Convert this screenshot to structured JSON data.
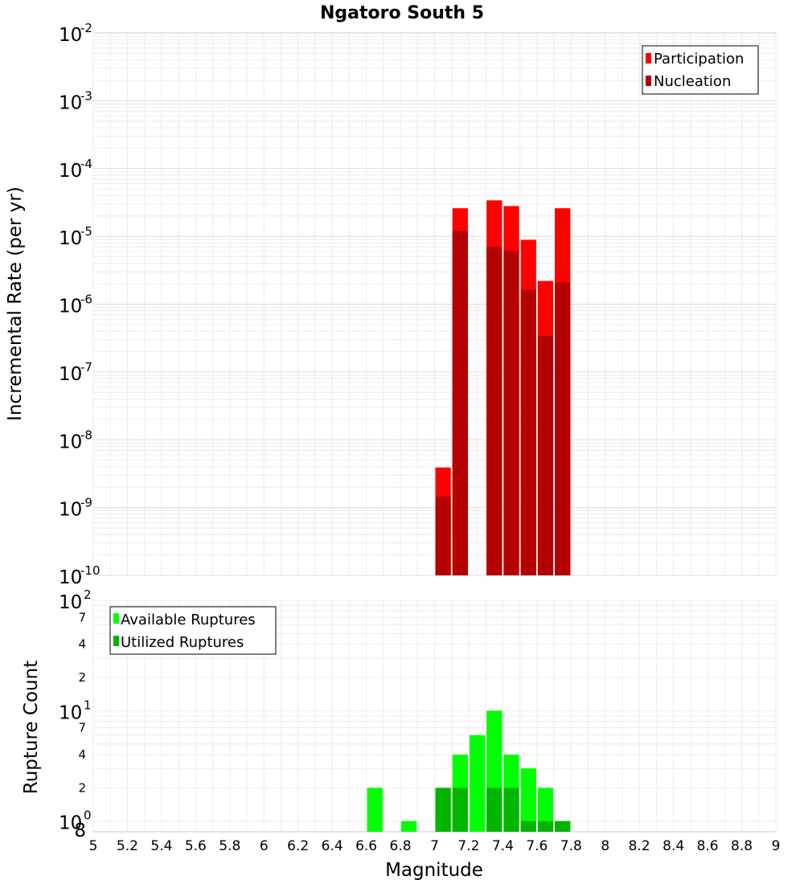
{
  "chart_data": [
    {
      "type": "bar",
      "title": "Ngatoro South 5",
      "xlabel": "Magnitude",
      "ylabel": "Incremental Rate (per yr)",
      "yscale": "log",
      "xlim": [
        5,
        9
      ],
      "ylim": [
        1e-10,
        0.01
      ],
      "x_ticks": [
        "5",
        "5.2",
        "5.4",
        "5.6",
        "5.8",
        "6",
        "6.2",
        "6.4",
        "6.6",
        "6.8",
        "7",
        "7.2",
        "7.4",
        "7.6",
        "7.8",
        "8",
        "8.2",
        "8.4",
        "8.6",
        "8.8",
        "9"
      ],
      "y_ticks": [
        {
          "base": "10",
          "exp": "-2",
          "value": -2
        },
        {
          "base": "10",
          "exp": "-3",
          "value": -3
        },
        {
          "base": "10",
          "exp": "-4",
          "value": -4
        },
        {
          "base": "10",
          "exp": "-5",
          "value": -5
        },
        {
          "base": "10",
          "exp": "-6",
          "value": -6
        },
        {
          "base": "10",
          "exp": "-7",
          "value": -7
        },
        {
          "base": "10",
          "exp": "-8",
          "value": -8
        },
        {
          "base": "10",
          "exp": "-9",
          "value": -9
        },
        {
          "base": "10",
          "exp": "-10",
          "value": -10
        }
      ],
      "legend": {
        "position": "top-right",
        "entries": [
          {
            "label": "Participation",
            "color": "#ff0000"
          },
          {
            "label": "Nucleation",
            "color": "#b40000"
          }
        ]
      },
      "bin_width": 0.1,
      "series": [
        {
          "name": "Participation",
          "color": "#ff0000",
          "x": [
            7.05,
            7.15,
            7.35,
            7.45,
            7.55,
            7.65,
            7.75
          ],
          "values": [
            3.9e-09,
            2.6e-05,
            3.4e-05,
            2.8e-05,
            8.9e-06,
            2.2e-06,
            2.6e-05
          ]
        },
        {
          "name": "Nucleation",
          "color": "#b40000",
          "x": [
            7.05,
            7.15,
            7.35,
            7.45,
            7.55,
            7.65,
            7.75
          ],
          "values": [
            1.45e-09,
            1.2e-05,
            7e-06,
            6.2e-06,
            1.65e-06,
            3.4e-07,
            2.1e-06
          ]
        }
      ]
    },
    {
      "type": "bar",
      "xlabel": "Magnitude",
      "ylabel": "Rupture Count",
      "yscale": "log",
      "xlim": [
        5,
        9
      ],
      "ylim": [
        0.8,
        100
      ],
      "y_major_ticks": [
        {
          "base": "10",
          "exp": "2",
          "value": 100
        },
        {
          "base": "10",
          "exp": "1",
          "value": 10
        },
        {
          "base": "10",
          "exp": "0",
          "value": 1
        }
      ],
      "y_minor_labels": [
        {
          "label": "7",
          "value": 70
        },
        {
          "label": "4",
          "value": 40
        },
        {
          "label": "2",
          "value": 20
        },
        {
          "label": "7",
          "value": 7
        },
        {
          "label": "4",
          "value": 4
        },
        {
          "label": "2",
          "value": 2
        },
        {
          "label": "8",
          "value": 0.8
        }
      ],
      "legend": {
        "position": "top-left",
        "entries": [
          {
            "label": "Available Ruptures",
            "color": "#00ff00"
          },
          {
            "label": "Utilized Ruptures",
            "color": "#00b400"
          }
        ]
      },
      "bin_width": 0.1,
      "series": [
        {
          "name": "Available Ruptures",
          "color": "#00ff00",
          "x": [
            6.65,
            6.85,
            7.05,
            7.15,
            7.25,
            7.35,
            7.45,
            7.55,
            7.65,
            7.75
          ],
          "values": [
            2,
            1,
            2,
            4,
            6,
            10,
            4,
            3,
            2,
            1
          ]
        },
        {
          "name": "Utilized Ruptures",
          "color": "#00b400",
          "x": [
            7.05,
            7.15,
            7.35,
            7.45,
            7.55,
            7.65,
            7.75
          ],
          "values": [
            2,
            2,
            2,
            2,
            1,
            1,
            1
          ]
        }
      ]
    }
  ]
}
